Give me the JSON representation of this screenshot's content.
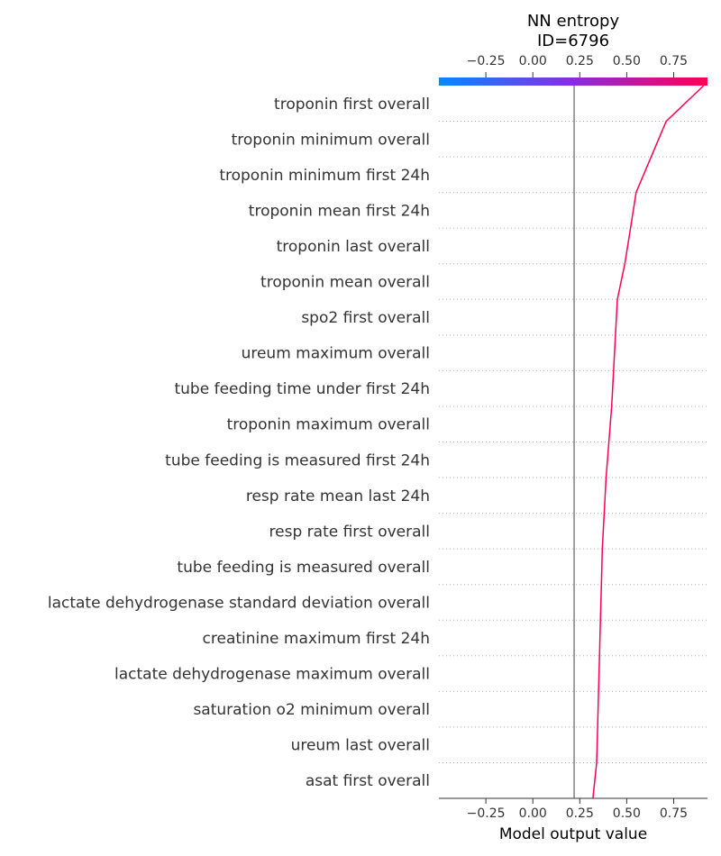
{
  "chart_data": {
    "type": "line",
    "title_line1": "NN entropy",
    "title_line2": "ID=6796",
    "xlabel": "Model output value",
    "xlim": [
      -0.5,
      0.93
    ],
    "xticks": [
      -0.25,
      0.0,
      0.25,
      0.5,
      0.75
    ],
    "xtick_labels": [
      "−0.25",
      "0.00",
      "0.25",
      "0.50",
      "0.75"
    ],
    "base_value": 0.22,
    "colorbar": {
      "colors": [
        "#008bfb",
        "#ff0052"
      ]
    },
    "line_color": "#ff0052",
    "features": [
      "troponin  first  overall",
      "troponin  minimum  overall",
      "troponin  minimum  first 24h",
      "troponin  mean  first 24h",
      "troponin  last  overall",
      "troponin  mean  overall",
      "spo2  first  overall",
      "ureum  maximum  overall",
      "tube feeding  time under  first 24h",
      "troponin  maximum  overall",
      "tube feeding  is measured  first 24h",
      "resp rate  mean  last 24h",
      "resp rate  first  overall",
      "tube feeding  is measured  overall",
      "lactate dehydrogenase  standard deviation  overall",
      "creatinine  maximum  first 24h",
      "lactate dehydrogenase  maximum  overall",
      "saturation o2  minimum  overall",
      "ureum  last  overall",
      "asat  first  overall"
    ],
    "cumulative_values_top_to_bottom": [
      0.91,
      0.71,
      0.63,
      0.55,
      0.52,
      0.49,
      0.45,
      0.44,
      0.43,
      0.42,
      0.405,
      0.39,
      0.38,
      0.37,
      0.365,
      0.36,
      0.355,
      0.35,
      0.345,
      0.34,
      0.32
    ]
  }
}
